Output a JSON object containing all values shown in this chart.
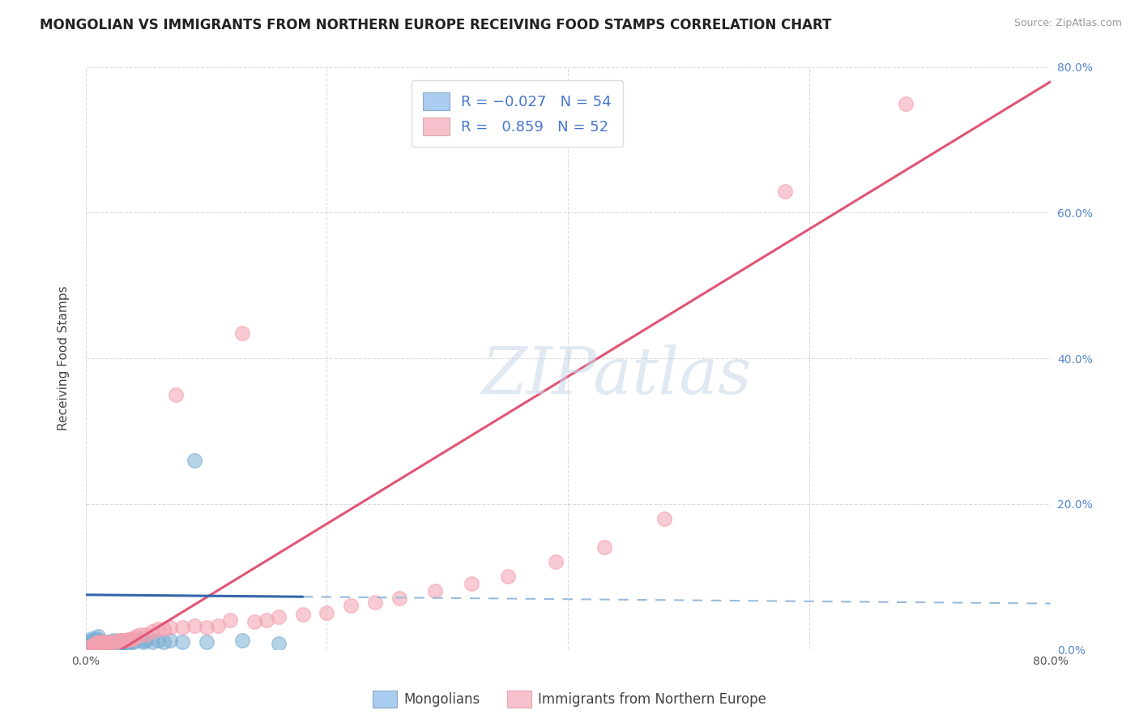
{
  "title": "MONGOLIAN VS IMMIGRANTS FROM NORTHERN EUROPE RECEIVING FOOD STAMPS CORRELATION CHART",
  "source": "Source: ZipAtlas.com",
  "ylabel": "Receiving Food Stamps",
  "legend_label1": "Mongolians",
  "legend_label2": "Immigrants from Northern Europe",
  "R1": -0.027,
  "N1": 54,
  "R2": 0.859,
  "N2": 52,
  "xlim": [
    0.0,
    0.8
  ],
  "ylim": [
    0.0,
    0.8
  ],
  "yticks": [
    0.0,
    0.2,
    0.4,
    0.6,
    0.8
  ],
  "ytick_labels": [
    "0.0%",
    "20.0%",
    "40.0%",
    "60.0%",
    "80.0%"
  ],
  "xticks": [
    0.0,
    0.2,
    0.4,
    0.6,
    0.8
  ],
  "xtick_labels": [
    "0.0%",
    "",
    "",
    "",
    "80.0%"
  ],
  "color_mongolian": "#7BAFD4",
  "color_northern_europe": "#F4A0B0",
  "color_trendline1": "#3366AA",
  "color_trendline2": "#E05575",
  "color_trendline1_dash": "#99BBDD",
  "color_grid": "#CCCCCC",
  "background_color": "#FFFFFF",
  "watermark": "ZIPatlas",
  "title_fontsize": 12,
  "axis_label_fontsize": 11,
  "tick_fontsize": 10,
  "mongolian_x": [
    0.005,
    0.005,
    0.005,
    0.005,
    0.005,
    0.007,
    0.007,
    0.007,
    0.008,
    0.008,
    0.009,
    0.009,
    0.01,
    0.01,
    0.01,
    0.01,
    0.01,
    0.012,
    0.012,
    0.013,
    0.014,
    0.015,
    0.015,
    0.016,
    0.017,
    0.018,
    0.019,
    0.02,
    0.02,
    0.021,
    0.022,
    0.023,
    0.025,
    0.025,
    0.028,
    0.03,
    0.03,
    0.032,
    0.033,
    0.035,
    0.038,
    0.04,
    0.045,
    0.048,
    0.05,
    0.055,
    0.06,
    0.065,
    0.07,
    0.08,
    0.09,
    0.1,
    0.13,
    0.16
  ],
  "mongolian_y": [
    0.005,
    0.008,
    0.01,
    0.012,
    0.015,
    0.005,
    0.008,
    0.012,
    0.006,
    0.01,
    0.005,
    0.015,
    0.005,
    0.008,
    0.01,
    0.012,
    0.018,
    0.006,
    0.01,
    0.008,
    0.006,
    0.008,
    0.01,
    0.006,
    0.008,
    0.01,
    0.007,
    0.006,
    0.01,
    0.008,
    0.01,
    0.012,
    0.008,
    0.01,
    0.009,
    0.01,
    0.012,
    0.009,
    0.01,
    0.008,
    0.01,
    0.01,
    0.012,
    0.01,
    0.012,
    0.01,
    0.012,
    0.01,
    0.012,
    0.01,
    0.26,
    0.01,
    0.012,
    0.008
  ],
  "northern_europe_x": [
    0.005,
    0.006,
    0.007,
    0.008,
    0.008,
    0.009,
    0.01,
    0.01,
    0.012,
    0.013,
    0.015,
    0.016,
    0.018,
    0.02,
    0.022,
    0.025,
    0.028,
    0.03,
    0.032,
    0.035,
    0.038,
    0.04,
    0.042,
    0.045,
    0.05,
    0.055,
    0.06,
    0.065,
    0.07,
    0.075,
    0.08,
    0.09,
    0.1,
    0.11,
    0.12,
    0.13,
    0.14,
    0.15,
    0.16,
    0.18,
    0.2,
    0.22,
    0.24,
    0.26,
    0.29,
    0.32,
    0.35,
    0.39,
    0.43,
    0.48,
    0.58,
    0.68
  ],
  "northern_europe_y": [
    0.005,
    0.006,
    0.006,
    0.007,
    0.008,
    0.008,
    0.006,
    0.01,
    0.008,
    0.01,
    0.008,
    0.01,
    0.01,
    0.008,
    0.01,
    0.01,
    0.012,
    0.012,
    0.012,
    0.014,
    0.015,
    0.015,
    0.018,
    0.02,
    0.02,
    0.025,
    0.028,
    0.028,
    0.03,
    0.35,
    0.03,
    0.032,
    0.03,
    0.032,
    0.04,
    0.435,
    0.038,
    0.04,
    0.045,
    0.048,
    0.05,
    0.06,
    0.065,
    0.07,
    0.08,
    0.09,
    0.1,
    0.12,
    0.14,
    0.18,
    0.63,
    0.75
  ]
}
